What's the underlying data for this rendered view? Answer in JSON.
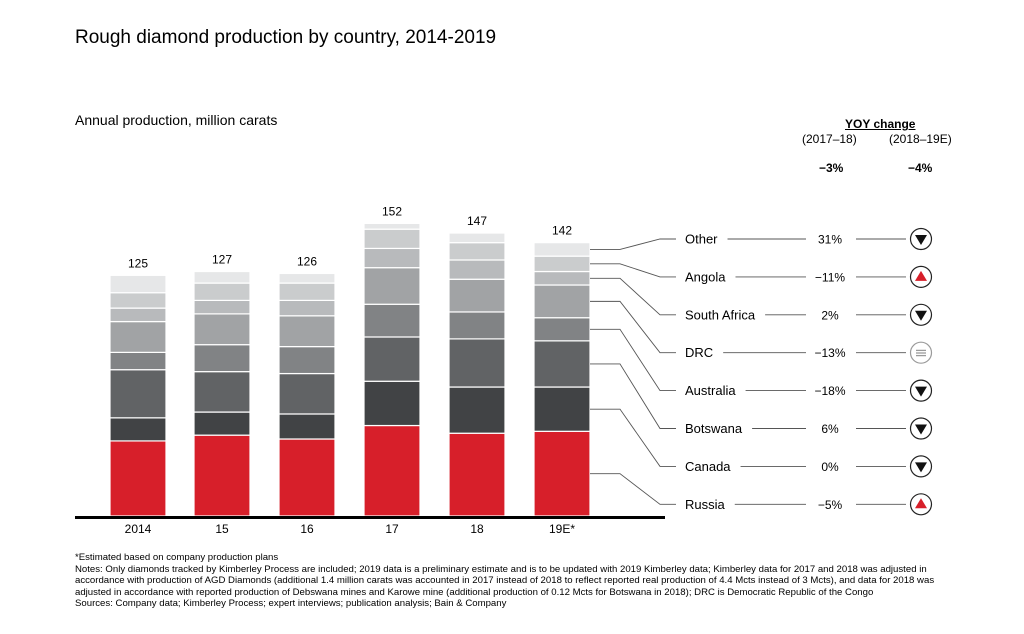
{
  "title": "Rough diamond production by country, 2014-2019",
  "subtitle": "Annual production, million carats",
  "yoy": {
    "header": "YOY change",
    "period_1": "(2017–18)",
    "period_2": "(2018–19E)",
    "total_1": "−3%",
    "total_2": "−4%"
  },
  "chart_data": {
    "type": "bar",
    "stacked": true,
    "title": "Rough diamond production by country, 2014-2019",
    "ylabel": "Annual production, million carats",
    "categories": [
      "2014",
      "15",
      "16",
      "17",
      "18",
      "19E*"
    ],
    "totals": [
      "125",
      "127",
      "126",
      "152",
      "147",
      "142"
    ],
    "series": [
      {
        "name": "Russia",
        "color": "#d71f2a",
        "values": [
          39,
          42,
          40,
          47,
          43,
          44
        ]
      },
      {
        "name": "Canada",
        "color": "#414345",
        "values": [
          12,
          12,
          13,
          23,
          24,
          23
        ]
      },
      {
        "name": "Botswana",
        "color": "#616365",
        "values": [
          25,
          21,
          21,
          23,
          25,
          24
        ]
      },
      {
        "name": "Australia",
        "color": "#818385",
        "values": [
          9,
          14,
          14,
          17,
          14,
          12
        ]
      },
      {
        "name": "DRC",
        "color": "#a1a3a5",
        "values": [
          16,
          16,
          16,
          19,
          17,
          17
        ]
      },
      {
        "name": "South Africa",
        "color": "#b8babc",
        "values": [
          7,
          7,
          8,
          10,
          10,
          7
        ]
      },
      {
        "name": "Angola",
        "color": "#cacccd",
        "values": [
          8,
          9,
          9,
          10,
          9,
          8
        ]
      },
      {
        "name": "Other",
        "color": "#e6e7e8",
        "values": [
          9,
          6,
          5,
          3,
          5,
          7
        ]
      }
    ],
    "ylim": [
      0,
      160
    ],
    "legend_placement": "right",
    "grid": false
  },
  "legend": [
    {
      "name": "Other",
      "change": "31%",
      "direction": "down",
      "icon": "down-arrow-icon"
    },
    {
      "name": "Angola",
      "change": "−11%",
      "direction": "up",
      "icon": "up-arrow-icon"
    },
    {
      "name": "South Africa",
      "change": "2%",
      "direction": "down",
      "icon": "down-arrow-icon"
    },
    {
      "name": "DRC",
      "change": "−13%",
      "direction": "neutral",
      "icon": "equals-icon"
    },
    {
      "name": "Australia",
      "change": "−18%",
      "direction": "down",
      "icon": "down-arrow-icon"
    },
    {
      "name": "Botswana",
      "change": "6%",
      "direction": "down",
      "icon": "down-arrow-icon"
    },
    {
      "name": "Canada",
      "change": "0%",
      "direction": "down",
      "icon": "down-arrow-icon"
    },
    {
      "name": "Russia",
      "change": "−5%",
      "direction": "up",
      "icon": "up-arrow-icon"
    }
  ],
  "colors": {
    "accent_red": "#d71f2a",
    "arrow_black": "#111111",
    "neutral_gray": "#9a9a9a"
  },
  "notes": [
    "*Estimated based on company production plans",
    "Notes: Only diamonds tracked by Kimberley Process are included; 2019 data is a preliminary estimate and is to be updated with 2019 Kimberley data; Kimberley data for 2017 and 2018 was adjusted in",
    "accordance with production of AGD Diamonds (additional 1.4 million carats was accounted in 2017 instead of 2018 to reflect reported real production of 4.4 Mcts instead of 3 Mcts), and data for 2018 was",
    "adjusted in accordance with reported production of Debswana mines and Karowe mine (additional production of 0.12 Mcts for Botswana in 2018); DRC is Democratic Republic of the Congo",
    "Sources: Company data; Kimberley Process; expert interviews; publication analysis; Bain & Company"
  ]
}
